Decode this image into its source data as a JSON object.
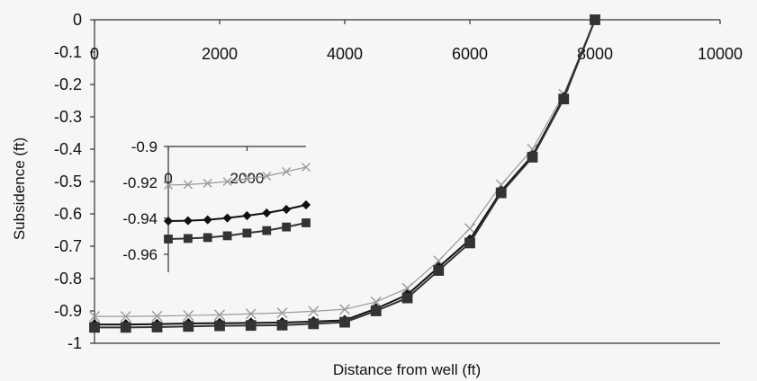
{
  "chart_data": [
    {
      "type": "line",
      "title": "",
      "xlabel": "Distance from well (ft)",
      "ylabel": "Subsidence (ft)",
      "xlim": [
        0,
        10000
      ],
      "ylim": [
        -1,
        0
      ],
      "x_ticks": [
        0,
        2000,
        4000,
        6000,
        8000,
        10000
      ],
      "x_tick_labels": [
        "0",
        "2000",
        "4000",
        "6000",
        "8000",
        "10000"
      ],
      "y_ticks": [
        0,
        -0.1,
        -0.2,
        -0.3,
        -0.4,
        -0.5,
        -0.6,
        -0.7,
        -0.8,
        -0.9,
        -1
      ],
      "y_tick_labels": [
        "0",
        "-0.1",
        "-0.2",
        "-0.3",
        "-0.4",
        "-0.5",
        "-0.6",
        "-0.7",
        "-0.8",
        "-0.9",
        "-1"
      ],
      "x_axis_position": "top",
      "grid": false,
      "legend": "none",
      "x": [
        0,
        500,
        1000,
        1500,
        2000,
        2500,
        3000,
        3500,
        4000,
        4500,
        5000,
        5500,
        6000,
        6500,
        7000,
        7500,
        8000
      ],
      "series": [
        {
          "marker": "x",
          "color": "#9a9a9a",
          "values": [
            -0.917,
            -0.917,
            -0.916,
            -0.914,
            -0.912,
            -0.909,
            -0.906,
            -0.901,
            -0.895,
            -0.872,
            -0.83,
            -0.745,
            -0.645,
            -0.51,
            -0.4,
            -0.23,
            0
          ]
        },
        {
          "marker": "diamond",
          "color": "#111111",
          "values": [
            -0.942,
            -0.942,
            -0.941,
            -0.939,
            -0.938,
            -0.937,
            -0.936,
            -0.933,
            -0.929,
            -0.893,
            -0.85,
            -0.765,
            -0.68,
            -0.53,
            -0.42,
            -0.24,
            0
          ]
        },
        {
          "marker": "square",
          "color": "#333333",
          "values": [
            -0.951,
            -0.951,
            -0.95,
            -0.948,
            -0.946,
            -0.945,
            -0.944,
            -0.94,
            -0.935,
            -0.9,
            -0.86,
            -0.775,
            -0.69,
            -0.535,
            -0.425,
            -0.245,
            0
          ]
        }
      ]
    },
    {
      "type": "line",
      "title": "",
      "xlabel": "",
      "ylabel": "",
      "xlim": [
        0,
        3500
      ],
      "ylim": [
        -0.97,
        -0.9
      ],
      "x_ticks": [
        0,
        2000
      ],
      "x_tick_labels": [
        "0",
        "2000"
      ],
      "y_ticks": [
        -0.9,
        -0.92,
        -0.94,
        -0.96
      ],
      "y_tick_labels": [
        "-0.9",
        "-0.92",
        "-0.94",
        "-0.96"
      ],
      "x_axis_position": "top",
      "grid": false,
      "legend": "none",
      "x": [
        0,
        500,
        1000,
        1500,
        2000,
        2500,
        3000,
        3500
      ],
      "series": [
        {
          "marker": "x",
          "color": "#9a9a9a",
          "values": [
            -0.9215,
            -0.9212,
            -0.9205,
            -0.9195,
            -0.918,
            -0.9165,
            -0.914,
            -0.9115
          ]
        },
        {
          "marker": "diamond",
          "color": "#111111",
          "values": [
            -0.9415,
            -0.9413,
            -0.9408,
            -0.9398,
            -0.9385,
            -0.937,
            -0.935,
            -0.9325
          ]
        },
        {
          "marker": "square",
          "color": "#333333",
          "values": [
            -0.9515,
            -0.9512,
            -0.9507,
            -0.9497,
            -0.9482,
            -0.9468,
            -0.9448,
            -0.9425
          ]
        }
      ]
    }
  ]
}
